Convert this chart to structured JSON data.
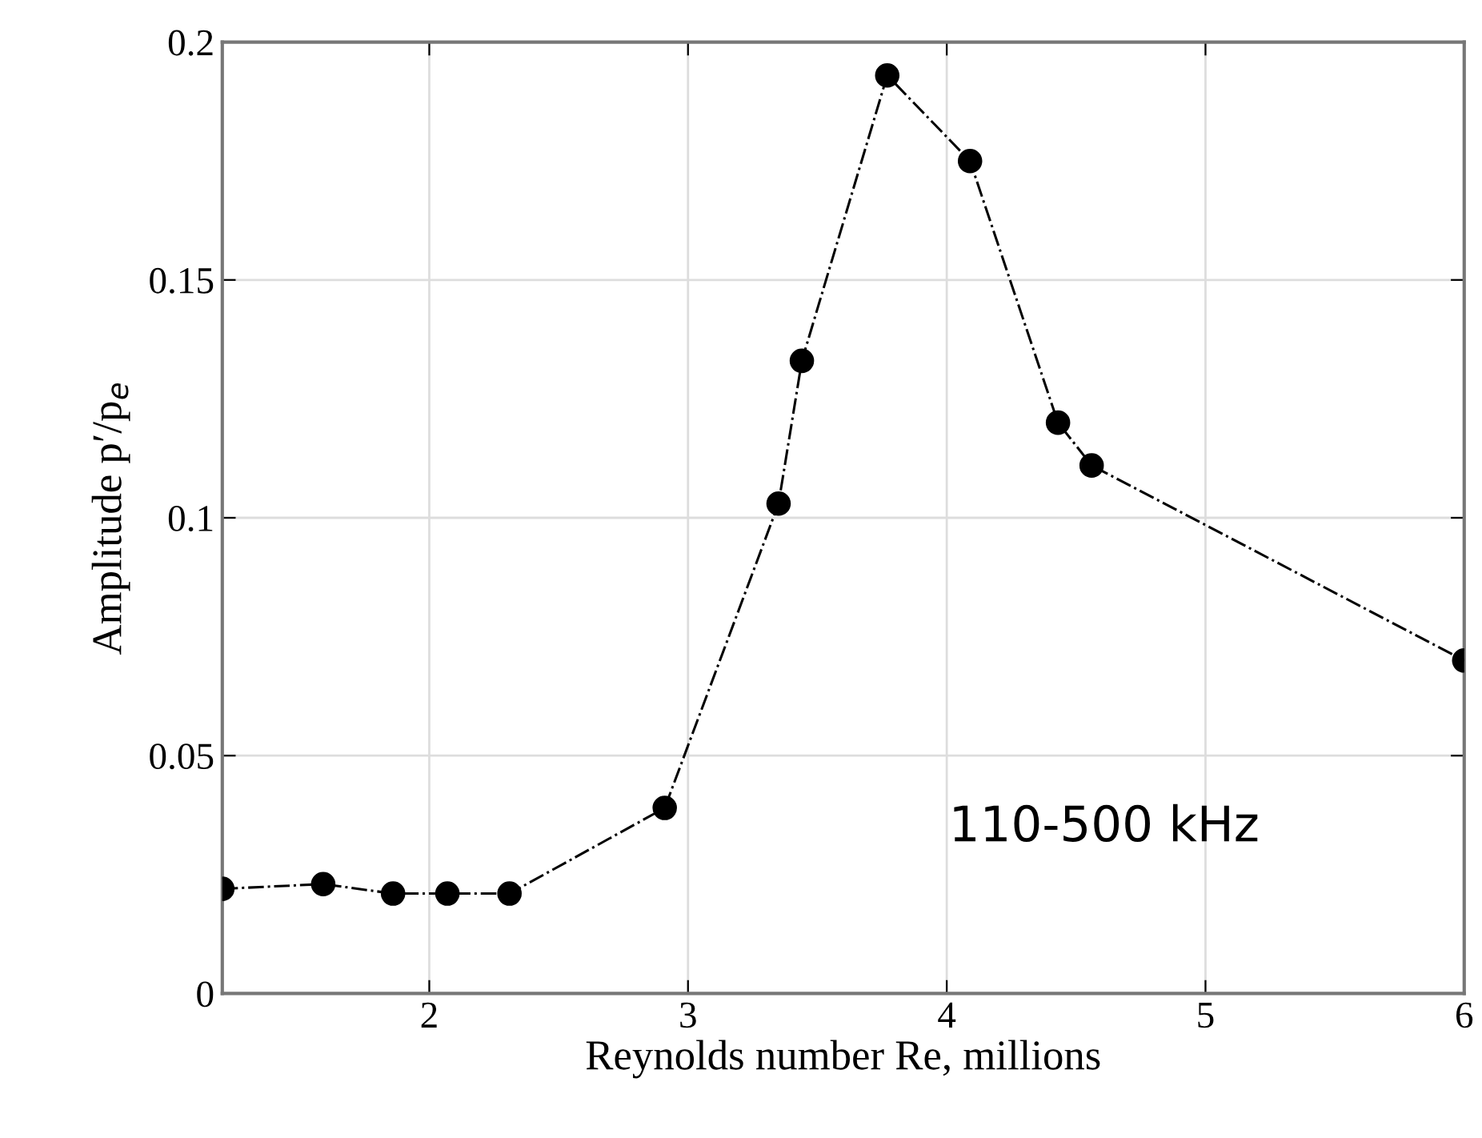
{
  "chart_data": {
    "type": "line",
    "xlabel": "Reynolds number Re, millions",
    "ylabel": "Amplitude p′/p$_{e}$",
    "x": [
      1.2,
      1.59,
      1.86,
      2.07,
      2.31,
      2.91,
      3.35,
      3.44,
      3.77,
      4.09,
      4.43,
      4.56,
      6.0
    ],
    "series": [
      {
        "color": "#000000",
        "values": [
          0.022,
          0.023,
          0.021,
          0.021,
          0.021,
          0.039,
          0.103,
          0.133,
          0.193,
          0.175,
          0.12,
          0.111,
          0.07
        ]
      }
    ],
    "xlim": [
      1.2,
      6
    ],
    "ylim": [
      0,
      0.2
    ],
    "xticks": [
      2,
      3,
      4,
      5,
      6
    ],
    "yticks": [
      0,
      0.05,
      0.1,
      0.15,
      0.2
    ],
    "grid": true,
    "marker": "circle",
    "line_style": "dashdot",
    "annotations": [
      "110-500 kHz"
    ]
  }
}
